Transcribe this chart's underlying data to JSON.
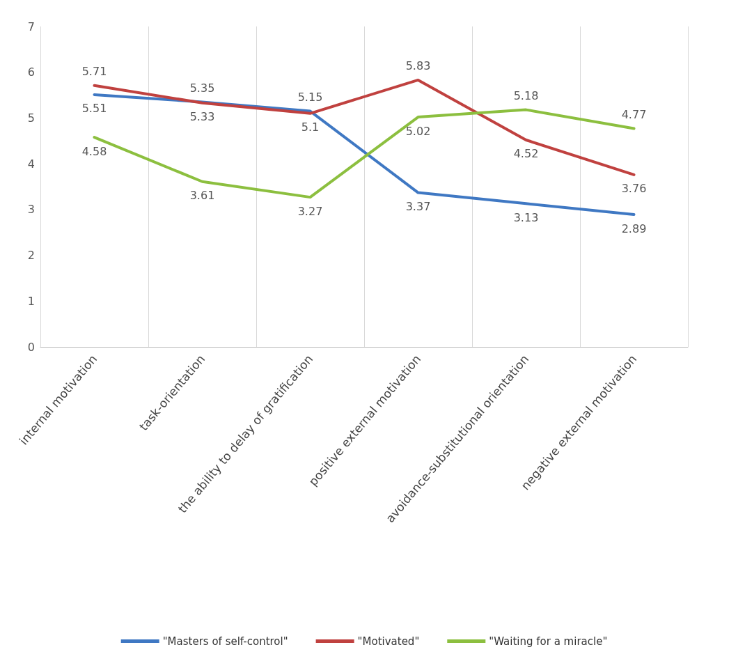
{
  "chart_data": {
    "type": "line",
    "categories": [
      "internal motivation",
      "task-orientation",
      "the ability to delay of gratification",
      "positive external motivation",
      "avoidance-substitutional orientation",
      "negative external motivation"
    ],
    "series": [
      {
        "name": "\"Masters of self-control\"",
        "color": "#3f78c3",
        "values": [
          5.51,
          5.35,
          5.15,
          3.37,
          3.13,
          2.89
        ]
      },
      {
        "name": "\"Motivated\"",
        "color": "#c0413f",
        "values": [
          5.71,
          5.33,
          5.1,
          5.83,
          4.52,
          3.76
        ]
      },
      {
        "name": "\"Waiting for a miracle\"",
        "color": "#8cbf3f",
        "values": [
          4.58,
          3.61,
          3.27,
          5.02,
          5.18,
          4.77
        ]
      }
    ],
    "ylim": [
      0,
      7
    ],
    "yticks": [
      0,
      1,
      2,
      3,
      4,
      5,
      6,
      7
    ],
    "grid": "x",
    "legend": "bottom",
    "data_labels": true,
    "marker": "none"
  }
}
